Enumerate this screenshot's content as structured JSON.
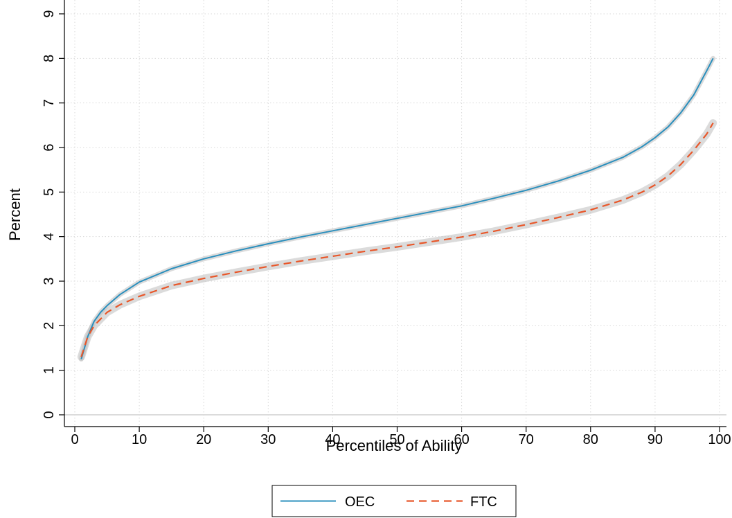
{
  "chart_data": {
    "type": "line",
    "title": "",
    "xlabel": "Percentiles of Ability",
    "ylabel": "Percent",
    "xlim": [
      0,
      100
    ],
    "ylim": [
      0,
      9
    ],
    "xticks": [
      0,
      10,
      20,
      30,
      40,
      50,
      60,
      70,
      80,
      90,
      100
    ],
    "yticks": [
      0,
      1,
      2,
      3,
      4,
      5,
      6,
      7,
      8,
      9
    ],
    "grid": true,
    "legend_position": "bottom",
    "series": [
      {
        "name": "OEC",
        "color": "#2a8fbd",
        "dash": "solid",
        "ci_band": true,
        "x": [
          1,
          2,
          3,
          4,
          5,
          7,
          10,
          15,
          20,
          25,
          30,
          35,
          40,
          45,
          50,
          55,
          60,
          65,
          70,
          75,
          80,
          85,
          88,
          90,
          92,
          94,
          96,
          98,
          99
        ],
        "y": [
          1.25,
          1.75,
          2.1,
          2.3,
          2.45,
          2.7,
          2.98,
          3.28,
          3.5,
          3.68,
          3.84,
          3.99,
          4.13,
          4.27,
          4.41,
          4.55,
          4.69,
          4.86,
          5.04,
          5.25,
          5.49,
          5.78,
          6.02,
          6.22,
          6.46,
          6.78,
          7.18,
          7.72,
          8.0
        ]
      },
      {
        "name": "FTC",
        "color": "#e8572a",
        "dash": "dashed",
        "ci_band": true,
        "x": [
          1,
          2,
          3,
          4,
          5,
          7,
          10,
          15,
          20,
          25,
          30,
          35,
          40,
          45,
          50,
          55,
          60,
          65,
          70,
          75,
          80,
          85,
          88,
          90,
          92,
          94,
          96,
          98,
          99
        ],
        "y": [
          1.3,
          1.75,
          2.0,
          2.15,
          2.3,
          2.47,
          2.66,
          2.9,
          3.06,
          3.2,
          3.33,
          3.45,
          3.56,
          3.67,
          3.77,
          3.88,
          3.99,
          4.12,
          4.27,
          4.43,
          4.6,
          4.82,
          5.0,
          5.16,
          5.36,
          5.62,
          5.94,
          6.3,
          6.55
        ]
      }
    ]
  }
}
